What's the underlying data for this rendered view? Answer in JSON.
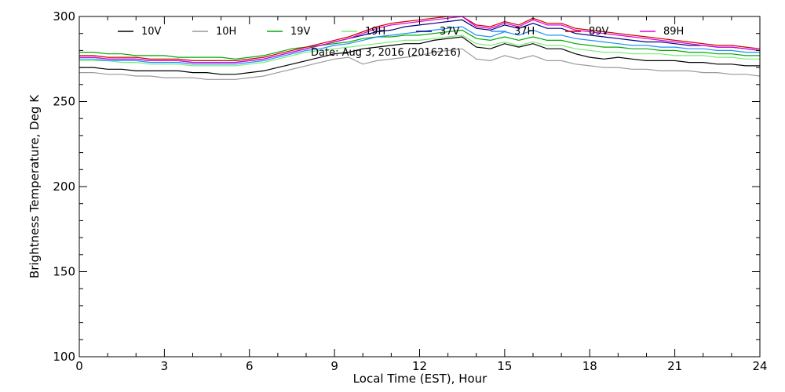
{
  "chart_data": {
    "type": "line",
    "xlabel": "Local Time (EST), Hour",
    "ylabel": "Brightness Temperature, Deg K",
    "annotation": "Date: Aug  3, 2016 (2016216)",
    "xlim": [
      0,
      24
    ],
    "ylim": [
      100,
      300
    ],
    "xticks": [
      0,
      3,
      6,
      9,
      12,
      15,
      18,
      21,
      24
    ],
    "yticks": [
      100,
      150,
      200,
      250,
      300
    ],
    "x_minor_step": 1,
    "y_minor_step": 10,
    "grid": false,
    "legend_placement": "top",
    "x": [
      0,
      0.5,
      1,
      1.5,
      2,
      2.5,
      3,
      3.5,
      4,
      4.5,
      5,
      5.5,
      6,
      6.5,
      7,
      7.5,
      8,
      8.5,
      9,
      9.5,
      10,
      10.5,
      11,
      11.5,
      12,
      12.5,
      13,
      13.5,
      14,
      14.5,
      15,
      15.5,
      16,
      16.5,
      17,
      17.5,
      18,
      18.5,
      19,
      19.5,
      20,
      20.5,
      21,
      21.5,
      22,
      22.5,
      23,
      23.5,
      24
    ],
    "series": [
      {
        "name": "10V",
        "color": "#000000",
        "values": [
          270,
          270,
          269,
          269,
          268,
          268,
          268,
          268,
          267,
          267,
          266,
          266,
          267,
          268,
          270,
          272,
          274,
          276,
          278,
          279,
          281,
          282,
          283,
          284,
          284,
          286,
          287,
          288,
          282,
          281,
          284,
          282,
          284,
          281,
          281,
          278,
          276,
          275,
          276,
          275,
          274,
          274,
          274,
          273,
          273,
          272,
          272,
          271,
          271
        ]
      },
      {
        "name": "10H",
        "color": "#999999",
        "values": [
          267,
          267,
          266,
          266,
          265,
          265,
          264,
          264,
          264,
          263,
          263,
          263,
          264,
          265,
          267,
          269,
          271,
          273,
          275,
          276,
          272,
          274,
          275,
          276,
          277,
          279,
          280,
          281,
          275,
          274,
          277,
          275,
          277,
          274,
          274,
          272,
          271,
          270,
          270,
          269,
          269,
          268,
          268,
          268,
          267,
          267,
          266,
          266,
          265
        ]
      },
      {
        "name": "19V",
        "color": "#00aa00",
        "values": [
          279,
          279,
          278,
          278,
          277,
          277,
          277,
          276,
          276,
          276,
          276,
          275,
          276,
          277,
          279,
          281,
          282,
          283,
          284,
          285,
          287,
          288,
          288,
          289,
          289,
          290,
          291,
          292,
          287,
          286,
          288,
          286,
          288,
          286,
          286,
          284,
          283,
          282,
          282,
          281,
          281,
          280,
          280,
          279,
          279,
          278,
          278,
          277,
          277
        ]
      },
      {
        "name": "19H",
        "color": "#77ee77",
        "values": [
          274,
          274,
          274,
          273,
          273,
          272,
          272,
          272,
          271,
          271,
          271,
          271,
          272,
          273,
          275,
          277,
          279,
          280,
          281,
          282,
          283,
          284,
          285,
          286,
          286,
          287,
          288,
          289,
          284,
          283,
          285,
          283,
          285,
          283,
          283,
          281,
          280,
          279,
          279,
          278,
          278,
          278,
          277,
          277,
          277,
          276,
          276,
          275,
          275
        ]
      },
      {
        "name": "37V",
        "color": "#000080",
        "values": [
          276,
          276,
          275,
          275,
          275,
          274,
          274,
          274,
          273,
          273,
          273,
          273,
          274,
          275,
          277,
          279,
          281,
          283,
          285,
          287,
          289,
          291,
          292,
          294,
          295,
          296,
          297,
          298,
          293,
          292,
          295,
          293,
          296,
          293,
          293,
          290,
          289,
          288,
          287,
          286,
          285,
          285,
          284,
          283,
          283,
          282,
          282,
          281,
          280
        ]
      },
      {
        "name": "37H",
        "color": "#1e90ff",
        "values": [
          275,
          275,
          274,
          274,
          274,
          273,
          273,
          273,
          272,
          272,
          272,
          272,
          273,
          274,
          276,
          278,
          280,
          281,
          283,
          284,
          286,
          288,
          289,
          290,
          291,
          292,
          293,
          294,
          289,
          288,
          291,
          289,
          292,
          289,
          289,
          287,
          286,
          285,
          284,
          283,
          283,
          282,
          282,
          281,
          281,
          280,
          280,
          279,
          279
        ]
      },
      {
        "name": "89V",
        "color": "#cc0000",
        "values": [
          277,
          277,
          276,
          276,
          276,
          275,
          275,
          275,
          274,
          274,
          274,
          274,
          275,
          276,
          278,
          280,
          282,
          284,
          286,
          288,
          291,
          294,
          296,
          297,
          298,
          299,
          300,
          300,
          295,
          294,
          297,
          295,
          299,
          296,
          296,
          293,
          292,
          291,
          290,
          289,
          288,
          287,
          286,
          285,
          284,
          283,
          283,
          282,
          281
        ]
      },
      {
        "name": "89H",
        "color": "#dd00dd",
        "values": [
          276,
          276,
          275,
          275,
          275,
          274,
          274,
          274,
          273,
          273,
          273,
          273,
          274,
          275,
          277,
          279,
          281,
          283,
          285,
          287,
          290,
          293,
          295,
          296,
          297,
          298,
          299,
          300,
          294,
          293,
          296,
          294,
          298,
          295,
          295,
          292,
          291,
          290,
          289,
          288,
          287,
          286,
          285,
          284,
          283,
          282,
          282,
          281,
          280
        ]
      }
    ]
  }
}
